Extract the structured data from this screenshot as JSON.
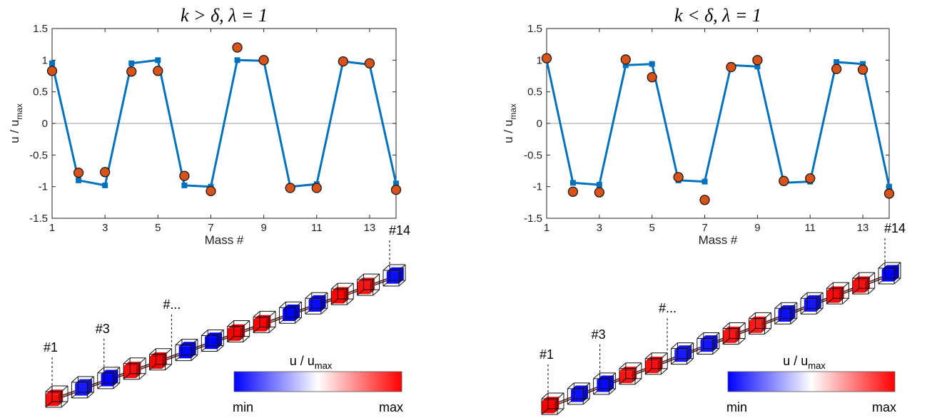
{
  "chart_data": [
    {
      "type": "line",
      "title": "k > δ, λ = 1",
      "xlabel": "Mass #",
      "ylabel_main": "u / u",
      "ylabel_sub": "max",
      "xlim": [
        1,
        14
      ],
      "ylim": [
        -1.5,
        1.5
      ],
      "xticks": [
        1,
        3,
        5,
        7,
        9,
        11,
        13
      ],
      "yticks": [
        -1.5,
        -1,
        -0.5,
        0,
        0.5,
        1,
        1.5
      ],
      "ytick_labels": [
        "-1.5",
        "-1",
        "-0.5",
        "0",
        "0.5",
        "1",
        "1.5"
      ],
      "zero_line": true,
      "colors": {
        "line": "#0072BD",
        "marker_fill": "#D95319",
        "marker_edge": "#1a1a1a",
        "zero_line": "#b0b0b0"
      },
      "series": [
        {
          "x": [
            1,
            2,
            3,
            4,
            5,
            6,
            7,
            8,
            9,
            10,
            11,
            12,
            13,
            14
          ],
          "values": [
            0.95,
            -0.9,
            -0.98,
            0.95,
            1.0,
            -0.98,
            -1.0,
            1.0,
            0.99,
            -1.0,
            -0.96,
            0.98,
            0.93,
            -0.95
          ],
          "marker": "square"
        },
        {
          "x": [
            1,
            2,
            3,
            4,
            5,
            6,
            7,
            8,
            9,
            10,
            11,
            12,
            13,
            14
          ],
          "values": [
            0.83,
            -0.78,
            -0.77,
            0.82,
            0.83,
            -0.83,
            -1.07,
            1.2,
            1.0,
            -1.02,
            -1.02,
            0.98,
            0.95,
            -1.05
          ],
          "marker": "circle"
        }
      ],
      "annotations": {
        "first": "#1",
        "third": "#3",
        "middle": "#...",
        "last": "#14",
        "masses": [
          0.95,
          -0.9,
          -0.98,
          0.95,
          1.0,
          -0.98,
          -1.0,
          1.0,
          0.99,
          -1.0,
          -0.96,
          0.98,
          0.93,
          -0.95
        ]
      },
      "colorbar": {
        "label_main": "u / u",
        "label_sub": "max",
        "min_label": "min",
        "max_label": "max",
        "colors": [
          "#0000ff",
          "#ffffff",
          "#ff0000"
        ]
      }
    },
    {
      "type": "line",
      "title": "k < δ, λ = 1",
      "xlabel": "Mass #",
      "ylabel_main": "u / u",
      "ylabel_sub": "max",
      "xlim": [
        1,
        14
      ],
      "ylim": [
        -1.5,
        1.5
      ],
      "xticks": [
        1,
        3,
        5,
        7,
        9,
        11,
        13
      ],
      "yticks": [
        -1.5,
        -1,
        -0.5,
        0,
        0.5,
        1,
        1.5
      ],
      "ytick_labels": [
        "-1.5",
        "-1",
        "-0.5",
        "0",
        "0.5",
        "1",
        "1.5"
      ],
      "zero_line": true,
      "colors": {
        "line": "#0072BD",
        "marker_fill": "#D95319",
        "marker_edge": "#1a1a1a",
        "zero_line": "#b0b0b0"
      },
      "series": [
        {
          "x": [
            1,
            2,
            3,
            4,
            5,
            6,
            7,
            8,
            9,
            10,
            11,
            12,
            13,
            14
          ],
          "values": [
            1.0,
            -0.94,
            -0.97,
            0.92,
            0.94,
            -0.9,
            -0.92,
            0.92,
            0.9,
            -0.94,
            -0.92,
            0.97,
            0.94,
            -1.0
          ],
          "marker": "square"
        },
        {
          "x": [
            1,
            2,
            3,
            4,
            5,
            6,
            7,
            8,
            9,
            10,
            11,
            12,
            13,
            14
          ],
          "values": [
            1.03,
            -1.08,
            -1.09,
            1.01,
            0.73,
            -0.85,
            -1.21,
            0.89,
            1.0,
            -0.91,
            -0.87,
            0.86,
            0.85,
            -1.11
          ],
          "marker": "circle"
        }
      ],
      "annotations": {
        "first": "#1",
        "third": "#3",
        "middle": "#...",
        "last": "#14",
        "masses": [
          1.0,
          -0.94,
          -0.97,
          0.92,
          0.94,
          -0.9,
          -0.92,
          0.92,
          0.9,
          -0.94,
          -0.92,
          0.97,
          0.94,
          -1.0
        ]
      },
      "colorbar": {
        "label_main": "u / u",
        "label_sub": "max",
        "min_label": "min",
        "max_label": "max",
        "colors": [
          "#0000ff",
          "#ffffff",
          "#ff0000"
        ]
      }
    }
  ]
}
